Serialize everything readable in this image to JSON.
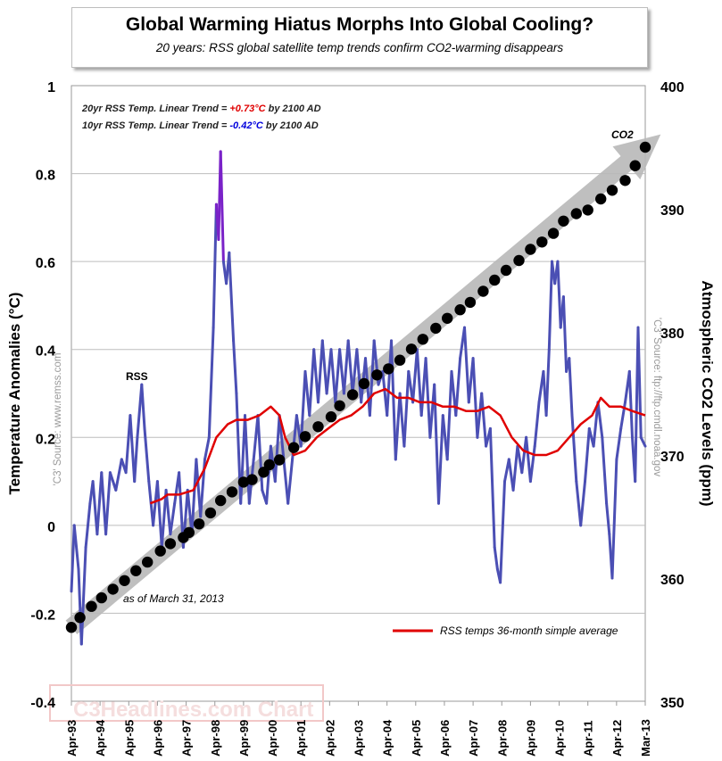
{
  "title": "Global Warming Hiatus Morphs Into Global Cooling?",
  "subtitle": "20 years: RSS global satellite temp trends confirm CO2-warming disappears",
  "trend_annotations": [
    {
      "prefix": "20yr RSS Temp. Linear Trend = ",
      "value": "+0.73°C",
      "suffix": " by 2100 AD",
      "color": "#e00000"
    },
    {
      "prefix": "10yr RSS Temp. Linear Trend = ",
      "value": "-0.42°C",
      "suffix": " by 2100 AD",
      "color": "#0000dd"
    }
  ],
  "left_source": "'C3' Source: www.remss.com",
  "right_source": "'C3' Source: ftp://ftp.cmdl.noaa.gov",
  "watermark": "C3Headlines.com Chart",
  "as_of": "as of March 31, 2013",
  "colors": {
    "rss": "#4b4fb4",
    "rss_peak": "#7a22c8",
    "avg": "#e00000",
    "co2_dots": "#000000",
    "arrow": "#b8b8b8",
    "grid": "#bdbdbd",
    "plot_bg": "#ffffff"
  },
  "chart_data": {
    "type": "line",
    "title": "Global Warming Hiatus Morphs Into Global Cooling?",
    "xlabel": "",
    "ylabel_left": "Temperature Anomalies (°C)",
    "ylabel_right": "Atmospheric CO2 Levels (ppm)",
    "x_start": 1993.25,
    "x_end": 2013.25,
    "ylim_left": [
      -0.4,
      1.0
    ],
    "ylim_right": [
      350,
      400
    ],
    "yticks_left": [
      1,
      0.8,
      0.6,
      0.4,
      0.2,
      0,
      -0.2,
      -0.4
    ],
    "ytick_labels_left": [
      "1",
      "0.8",
      "0.6",
      "0.4",
      "0.2",
      "0",
      "-0.2",
      "-0.4"
    ],
    "yticks_right": [
      400,
      390,
      380,
      370,
      360,
      350
    ],
    "xtick_labels": [
      "Apr-93",
      "Apr-94",
      "Apr-95",
      "Apr-96",
      "Apr-97",
      "Apr-98",
      "Apr-99",
      "Apr-00",
      "Apr-01",
      "Apr-02",
      "Apr-03",
      "Apr-04",
      "Apr-05",
      "Apr-06",
      "Apr-07",
      "Apr-08",
      "Apr-09",
      "Apr-10",
      "Apr-11",
      "Apr-12",
      "Mar-13"
    ],
    "grid": true,
    "rss_label": "RSS",
    "co2_label": "CO2",
    "legend": {
      "label": "RSS temps 36-month simple average",
      "placement": "bottom-right"
    },
    "series": [
      {
        "name": "RSS",
        "axis": "left",
        "anchors": [
          [
            1993.25,
            -0.15
          ],
          [
            1993.35,
            0.0
          ],
          [
            1993.5,
            -0.1
          ],
          [
            1993.6,
            -0.27
          ],
          [
            1993.75,
            -0.05
          ],
          [
            1993.9,
            0.05
          ],
          [
            1994.0,
            0.1
          ],
          [
            1994.15,
            -0.02
          ],
          [
            1994.3,
            0.12
          ],
          [
            1994.45,
            -0.02
          ],
          [
            1994.6,
            0.12
          ],
          [
            1994.8,
            0.08
          ],
          [
            1995.0,
            0.15
          ],
          [
            1995.15,
            0.12
          ],
          [
            1995.3,
            0.25
          ],
          [
            1995.45,
            0.1
          ],
          [
            1995.55,
            0.2
          ],
          [
            1995.7,
            0.32
          ],
          [
            1995.8,
            0.22
          ],
          [
            1995.95,
            0.1
          ],
          [
            1996.1,
            0.0
          ],
          [
            1996.25,
            0.1
          ],
          [
            1996.4,
            -0.05
          ],
          [
            1996.55,
            0.08
          ],
          [
            1996.7,
            -0.02
          ],
          [
            1996.85,
            0.05
          ],
          [
            1997.0,
            0.12
          ],
          [
            1997.15,
            -0.05
          ],
          [
            1997.3,
            0.08
          ],
          [
            1997.45,
            -0.02
          ],
          [
            1997.6,
            0.15
          ],
          [
            1997.75,
            0.02
          ],
          [
            1997.9,
            0.15
          ],
          [
            1998.05,
            0.2
          ],
          [
            1998.2,
            0.45
          ],
          [
            1998.3,
            0.73
          ],
          [
            1998.38,
            0.65
          ],
          [
            1998.45,
            0.85
          ],
          [
            1998.55,
            0.6
          ],
          [
            1998.65,
            0.55
          ],
          [
            1998.75,
            0.62
          ],
          [
            1998.9,
            0.42
          ],
          [
            1999.0,
            0.3
          ],
          [
            1999.15,
            0.05
          ],
          [
            1999.3,
            0.25
          ],
          [
            1999.45,
            0.05
          ],
          [
            1999.6,
            0.15
          ],
          [
            1999.75,
            0.25
          ],
          [
            1999.9,
            0.08
          ],
          [
            2000.05,
            0.05
          ],
          [
            2000.2,
            0.18
          ],
          [
            2000.35,
            0.1
          ],
          [
            2000.5,
            0.25
          ],
          [
            2000.65,
            0.15
          ],
          [
            2000.8,
            0.05
          ],
          [
            2000.95,
            0.15
          ],
          [
            2001.1,
            0.25
          ],
          [
            2001.25,
            0.18
          ],
          [
            2001.4,
            0.35
          ],
          [
            2001.55,
            0.25
          ],
          [
            2001.7,
            0.4
          ],
          [
            2001.85,
            0.28
          ],
          [
            2002.0,
            0.42
          ],
          [
            2002.15,
            0.3
          ],
          [
            2002.3,
            0.4
          ],
          [
            2002.45,
            0.28
          ],
          [
            2002.6,
            0.4
          ],
          [
            2002.75,
            0.3
          ],
          [
            2002.9,
            0.42
          ],
          [
            2003.05,
            0.3
          ],
          [
            2003.2,
            0.4
          ],
          [
            2003.35,
            0.28
          ],
          [
            2003.5,
            0.38
          ],
          [
            2003.65,
            0.25
          ],
          [
            2003.8,
            0.42
          ],
          [
            2003.95,
            0.32
          ],
          [
            2004.1,
            0.35
          ],
          [
            2004.25,
            0.25
          ],
          [
            2004.4,
            0.42
          ],
          [
            2004.55,
            0.15
          ],
          [
            2004.7,
            0.3
          ],
          [
            2004.85,
            0.18
          ],
          [
            2005.0,
            0.35
          ],
          [
            2005.15,
            0.28
          ],
          [
            2005.3,
            0.4
          ],
          [
            2005.45,
            0.25
          ],
          [
            2005.6,
            0.38
          ],
          [
            2005.75,
            0.2
          ],
          [
            2005.9,
            0.32
          ],
          [
            2006.05,
            0.05
          ],
          [
            2006.2,
            0.25
          ],
          [
            2006.35,
            0.15
          ],
          [
            2006.5,
            0.35
          ],
          [
            2006.65,
            0.25
          ],
          [
            2006.8,
            0.38
          ],
          [
            2006.95,
            0.45
          ],
          [
            2007.1,
            0.28
          ],
          [
            2007.25,
            0.38
          ],
          [
            2007.4,
            0.2
          ],
          [
            2007.55,
            0.3
          ],
          [
            2007.7,
            0.18
          ],
          [
            2007.85,
            0.22
          ],
          [
            2008.0,
            -0.05
          ],
          [
            2008.1,
            -0.1
          ],
          [
            2008.2,
            -0.13
          ],
          [
            2008.35,
            0.1
          ],
          [
            2008.5,
            0.15
          ],
          [
            2008.65,
            0.08
          ],
          [
            2008.8,
            0.18
          ],
          [
            2008.95,
            0.12
          ],
          [
            2009.1,
            0.2
          ],
          [
            2009.25,
            0.1
          ],
          [
            2009.4,
            0.18
          ],
          [
            2009.55,
            0.28
          ],
          [
            2009.7,
            0.35
          ],
          [
            2009.8,
            0.25
          ],
          [
            2009.9,
            0.4
          ],
          [
            2010.0,
            0.6
          ],
          [
            2010.1,
            0.55
          ],
          [
            2010.2,
            0.6
          ],
          [
            2010.3,
            0.45
          ],
          [
            2010.4,
            0.52
          ],
          [
            2010.5,
            0.35
          ],
          [
            2010.6,
            0.38
          ],
          [
            2010.7,
            0.25
          ],
          [
            2010.85,
            0.1
          ],
          [
            2011.0,
            0.0
          ],
          [
            2011.15,
            0.1
          ],
          [
            2011.3,
            0.22
          ],
          [
            2011.45,
            0.18
          ],
          [
            2011.6,
            0.28
          ],
          [
            2011.75,
            0.2
          ],
          [
            2011.9,
            0.05
          ],
          [
            2012.0,
            -0.02
          ],
          [
            2012.1,
            -0.12
          ],
          [
            2012.25,
            0.15
          ],
          [
            2012.4,
            0.22
          ],
          [
            2012.55,
            0.28
          ],
          [
            2012.7,
            0.35
          ],
          [
            2012.8,
            0.2
          ],
          [
            2012.9,
            0.1
          ],
          [
            2013.0,
            0.45
          ],
          [
            2013.1,
            0.2
          ],
          [
            2013.25,
            0.18
          ]
        ]
      },
      {
        "name": "RSS temps 36-month simple average",
        "axis": "left",
        "anchors": [
          [
            1996.0,
            0.05
          ],
          [
            1996.4,
            0.06
          ],
          [
            1996.6,
            0.07
          ],
          [
            1997.0,
            0.07
          ],
          [
            1997.5,
            0.08
          ],
          [
            1997.9,
            0.13
          ],
          [
            1998.3,
            0.2
          ],
          [
            1998.7,
            0.23
          ],
          [
            1999.0,
            0.24
          ],
          [
            1999.4,
            0.24
          ],
          [
            1999.8,
            0.25
          ],
          [
            2000.2,
            0.27
          ],
          [
            2000.5,
            0.25
          ],
          [
            2000.7,
            0.2
          ],
          [
            2001.0,
            0.16
          ],
          [
            2001.4,
            0.17
          ],
          [
            2001.8,
            0.2
          ],
          [
            2002.2,
            0.22
          ],
          [
            2002.6,
            0.24
          ],
          [
            2003.0,
            0.25
          ],
          [
            2003.4,
            0.27
          ],
          [
            2003.8,
            0.3
          ],
          [
            2004.2,
            0.31
          ],
          [
            2004.6,
            0.29
          ],
          [
            2005.0,
            0.29
          ],
          [
            2005.4,
            0.28
          ],
          [
            2005.8,
            0.28
          ],
          [
            2006.2,
            0.27
          ],
          [
            2006.6,
            0.27
          ],
          [
            2007.0,
            0.26
          ],
          [
            2007.4,
            0.26
          ],
          [
            2007.8,
            0.27
          ],
          [
            2008.2,
            0.25
          ],
          [
            2008.6,
            0.2
          ],
          [
            2009.0,
            0.17
          ],
          [
            2009.4,
            0.16
          ],
          [
            2009.8,
            0.16
          ],
          [
            2010.2,
            0.17
          ],
          [
            2010.6,
            0.2
          ],
          [
            2011.0,
            0.23
          ],
          [
            2011.4,
            0.25
          ],
          [
            2011.7,
            0.29
          ],
          [
            2012.0,
            0.27
          ],
          [
            2012.4,
            0.27
          ],
          [
            2012.8,
            0.26
          ],
          [
            2013.25,
            0.25
          ]
        ]
      },
      {
        "name": "CO2",
        "axis": "right",
        "type": "scatter",
        "x": [
          1993.25,
          1993.55,
          1993.95,
          1994.3,
          1994.7,
          1995.1,
          1995.5,
          1995.9,
          1996.35,
          1996.7,
          1997.15,
          1997.35,
          1997.7,
          1998.1,
          1998.45,
          1998.85,
          1999.25,
          1999.55,
          1999.95,
          2000.15,
          2000.5,
          2001.0,
          2001.4,
          2001.85,
          2002.3,
          2002.6,
          2003.05,
          2003.45,
          2003.9,
          2004.3,
          2004.7,
          2005.1,
          2005.5,
          2005.95,
          2006.35,
          2006.8,
          2007.15,
          2007.6,
          2008.0,
          2008.4,
          2008.85,
          2009.25,
          2009.65,
          2010.05,
          2010.4,
          2010.85,
          2011.25,
          2011.7,
          2012.1,
          2012.55,
          2012.9,
          2013.25
        ],
        "values": [
          356.0,
          356.8,
          357.7,
          358.4,
          359.1,
          359.8,
          360.6,
          361.3,
          362.2,
          362.8,
          363.3,
          363.7,
          364.4,
          365.3,
          366.3,
          367.0,
          367.8,
          368.0,
          368.6,
          369.2,
          369.6,
          370.6,
          371.5,
          372.3,
          373.1,
          374.0,
          374.9,
          375.8,
          376.5,
          377.0,
          377.7,
          378.6,
          379.4,
          380.3,
          381.1,
          381.8,
          382.4,
          383.3,
          384.2,
          385.0,
          385.8,
          386.7,
          387.3,
          388.0,
          389.0,
          389.6,
          389.9,
          390.8,
          391.5,
          392.3,
          393.5,
          395.0
        ]
      }
    ]
  }
}
